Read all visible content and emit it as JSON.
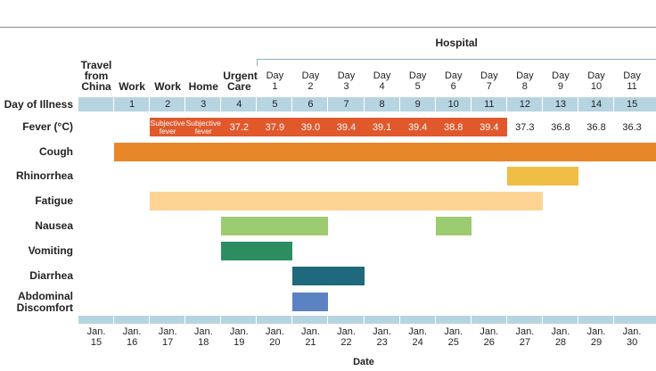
{
  "chart_data": {
    "type": "timeline",
    "x_title": "Date",
    "categories": [
      "Jan. 15",
      "Jan. 16",
      "Jan. 17",
      "Jan. 18",
      "Jan. 19",
      "Jan. 20",
      "Jan. 21",
      "Jan. 22",
      "Jan. 23",
      "Jan. 24",
      "Jan. 25",
      "Jan. 26",
      "Jan. 27",
      "Jan. 28",
      "Jan. 29",
      "Jan. 30"
    ],
    "locations": [
      "Travel from China",
      "Work",
      "Work",
      "Home",
      "Urgent Care",
      "Day 1",
      "Day 2",
      "Day 3",
      "Day 4",
      "Day 5",
      "Day 6",
      "Day 7",
      "Day 8",
      "Day 9",
      "Day 10",
      "Day 11"
    ],
    "location_group": {
      "label": "Hospital",
      "start": "Jan. 20",
      "end": "Jan. 30"
    },
    "day_of_illness": {
      "label": "Day of Illness",
      "color": "#b7d4e1",
      "values": [
        null,
        1,
        2,
        3,
        4,
        5,
        6,
        7,
        8,
        9,
        10,
        11,
        12,
        13,
        14,
        15
      ]
    },
    "fever": {
      "label": "Fever (°C)",
      "color": "#e0582b",
      "highlight": {
        "start": "Jan. 17",
        "end": "Jan. 26"
      },
      "values": [
        null,
        null,
        null,
        null,
        37.2,
        37.9,
        39.0,
        39.4,
        39.1,
        39.4,
        38.8,
        39.4,
        37.3,
        36.8,
        36.8,
        36.3
      ],
      "value_labels": [
        null,
        null,
        "Subjective fever",
        "Subjective fever",
        "37.2",
        "37.9",
        "39.0",
        "39.4",
        "39.1",
        "39.4",
        "38.8",
        "39.4",
        "37.3",
        "36.8",
        "36.8",
        "36.3"
      ]
    },
    "symptoms": [
      {
        "name": "Cough",
        "color": "#e8862a",
        "spans": [
          {
            "start": "Jan. 16",
            "end": "Jan. 30"
          }
        ]
      },
      {
        "name": "Rhinorrhea",
        "color": "#f0bd45",
        "spans": [
          {
            "start": "Jan. 27",
            "end": "Jan. 28"
          }
        ]
      },
      {
        "name": "Fatigue",
        "color": "#fdd493",
        "spans": [
          {
            "start": "Jan. 17",
            "end": "Jan. 27"
          }
        ]
      },
      {
        "name": "Nausea",
        "color": "#9dcb70",
        "spans": [
          {
            "start": "Jan. 19",
            "end": "Jan. 21"
          },
          {
            "start": "Jan. 25",
            "end": "Jan. 25"
          }
        ]
      },
      {
        "name": "Vomiting",
        "color": "#2c8e60",
        "spans": [
          {
            "start": "Jan. 19",
            "end": "Jan. 20"
          }
        ]
      },
      {
        "name": "Diarrhea",
        "color": "#1f687e",
        "spans": [
          {
            "start": "Jan. 21",
            "end": "Jan. 22"
          }
        ]
      },
      {
        "name": "Abdominal Discomfort",
        "color": "#5b82c3",
        "spans": [
          {
            "start": "Jan. 21",
            "end": "Jan. 21"
          }
        ]
      }
    ]
  }
}
